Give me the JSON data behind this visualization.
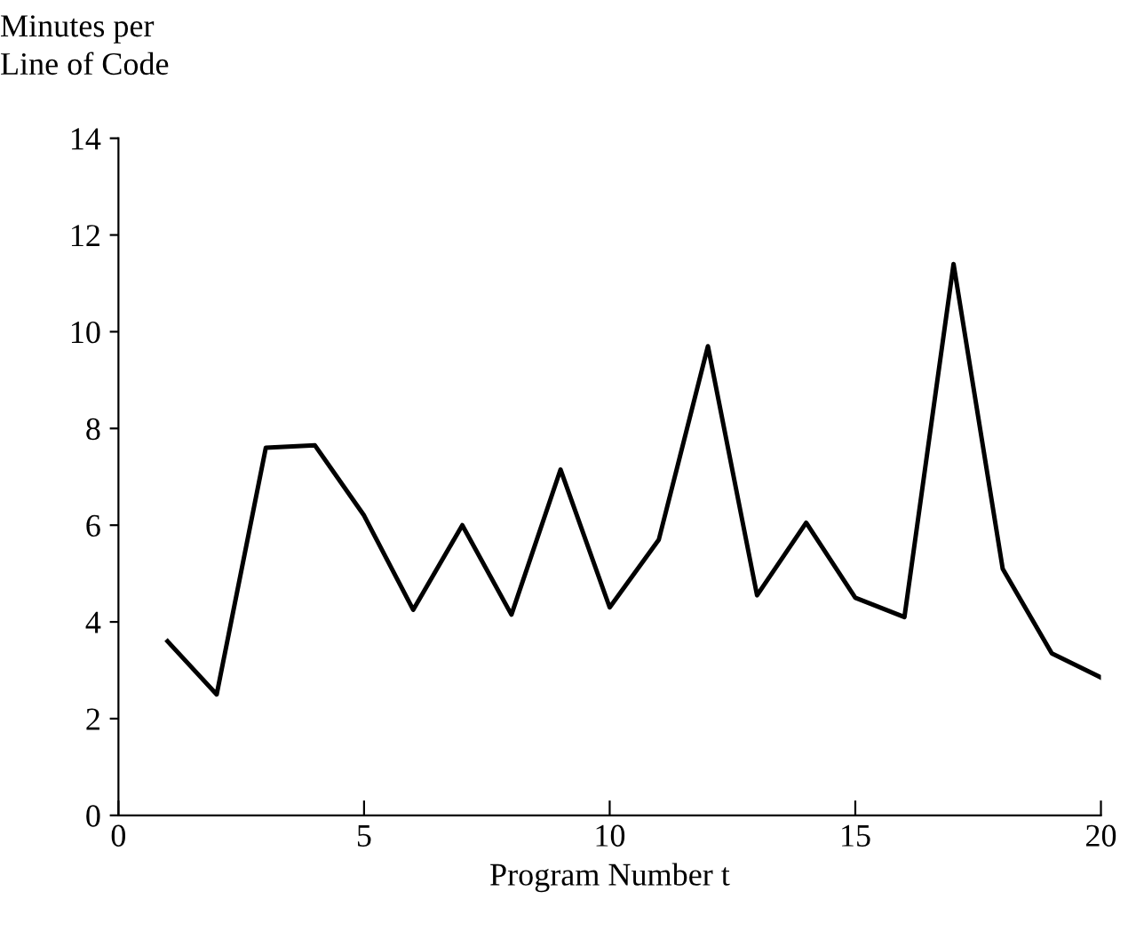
{
  "chart_data": {
    "type": "line",
    "xlabel": "Program Number t",
    "ylabel": "Minutes per\nLine of Code",
    "x": [
      1,
      2,
      3,
      4,
      5,
      6,
      7,
      8,
      9,
      10,
      11,
      12,
      13,
      14,
      15,
      16,
      17,
      18,
      19,
      20
    ],
    "series": [
      {
        "color": "#000000",
        "values": [
          3.6,
          2.5,
          7.6,
          7.65,
          6.2,
          4.25,
          6.0,
          4.15,
          7.15,
          4.3,
          5.7,
          9.7,
          4.55,
          6.05,
          4.5,
          4.1,
          11.4,
          5.1,
          3.35,
          2.85
        ]
      }
    ],
    "xlim": [
      0,
      20
    ],
    "xticks": [
      0,
      5,
      10,
      15,
      20
    ],
    "ylim": [
      0,
      14
    ],
    "yticks": [
      0,
      2,
      4,
      6,
      8,
      10,
      12,
      14
    ],
    "grid": false,
    "legend": false,
    "marker": "none",
    "line_style": "solid"
  }
}
